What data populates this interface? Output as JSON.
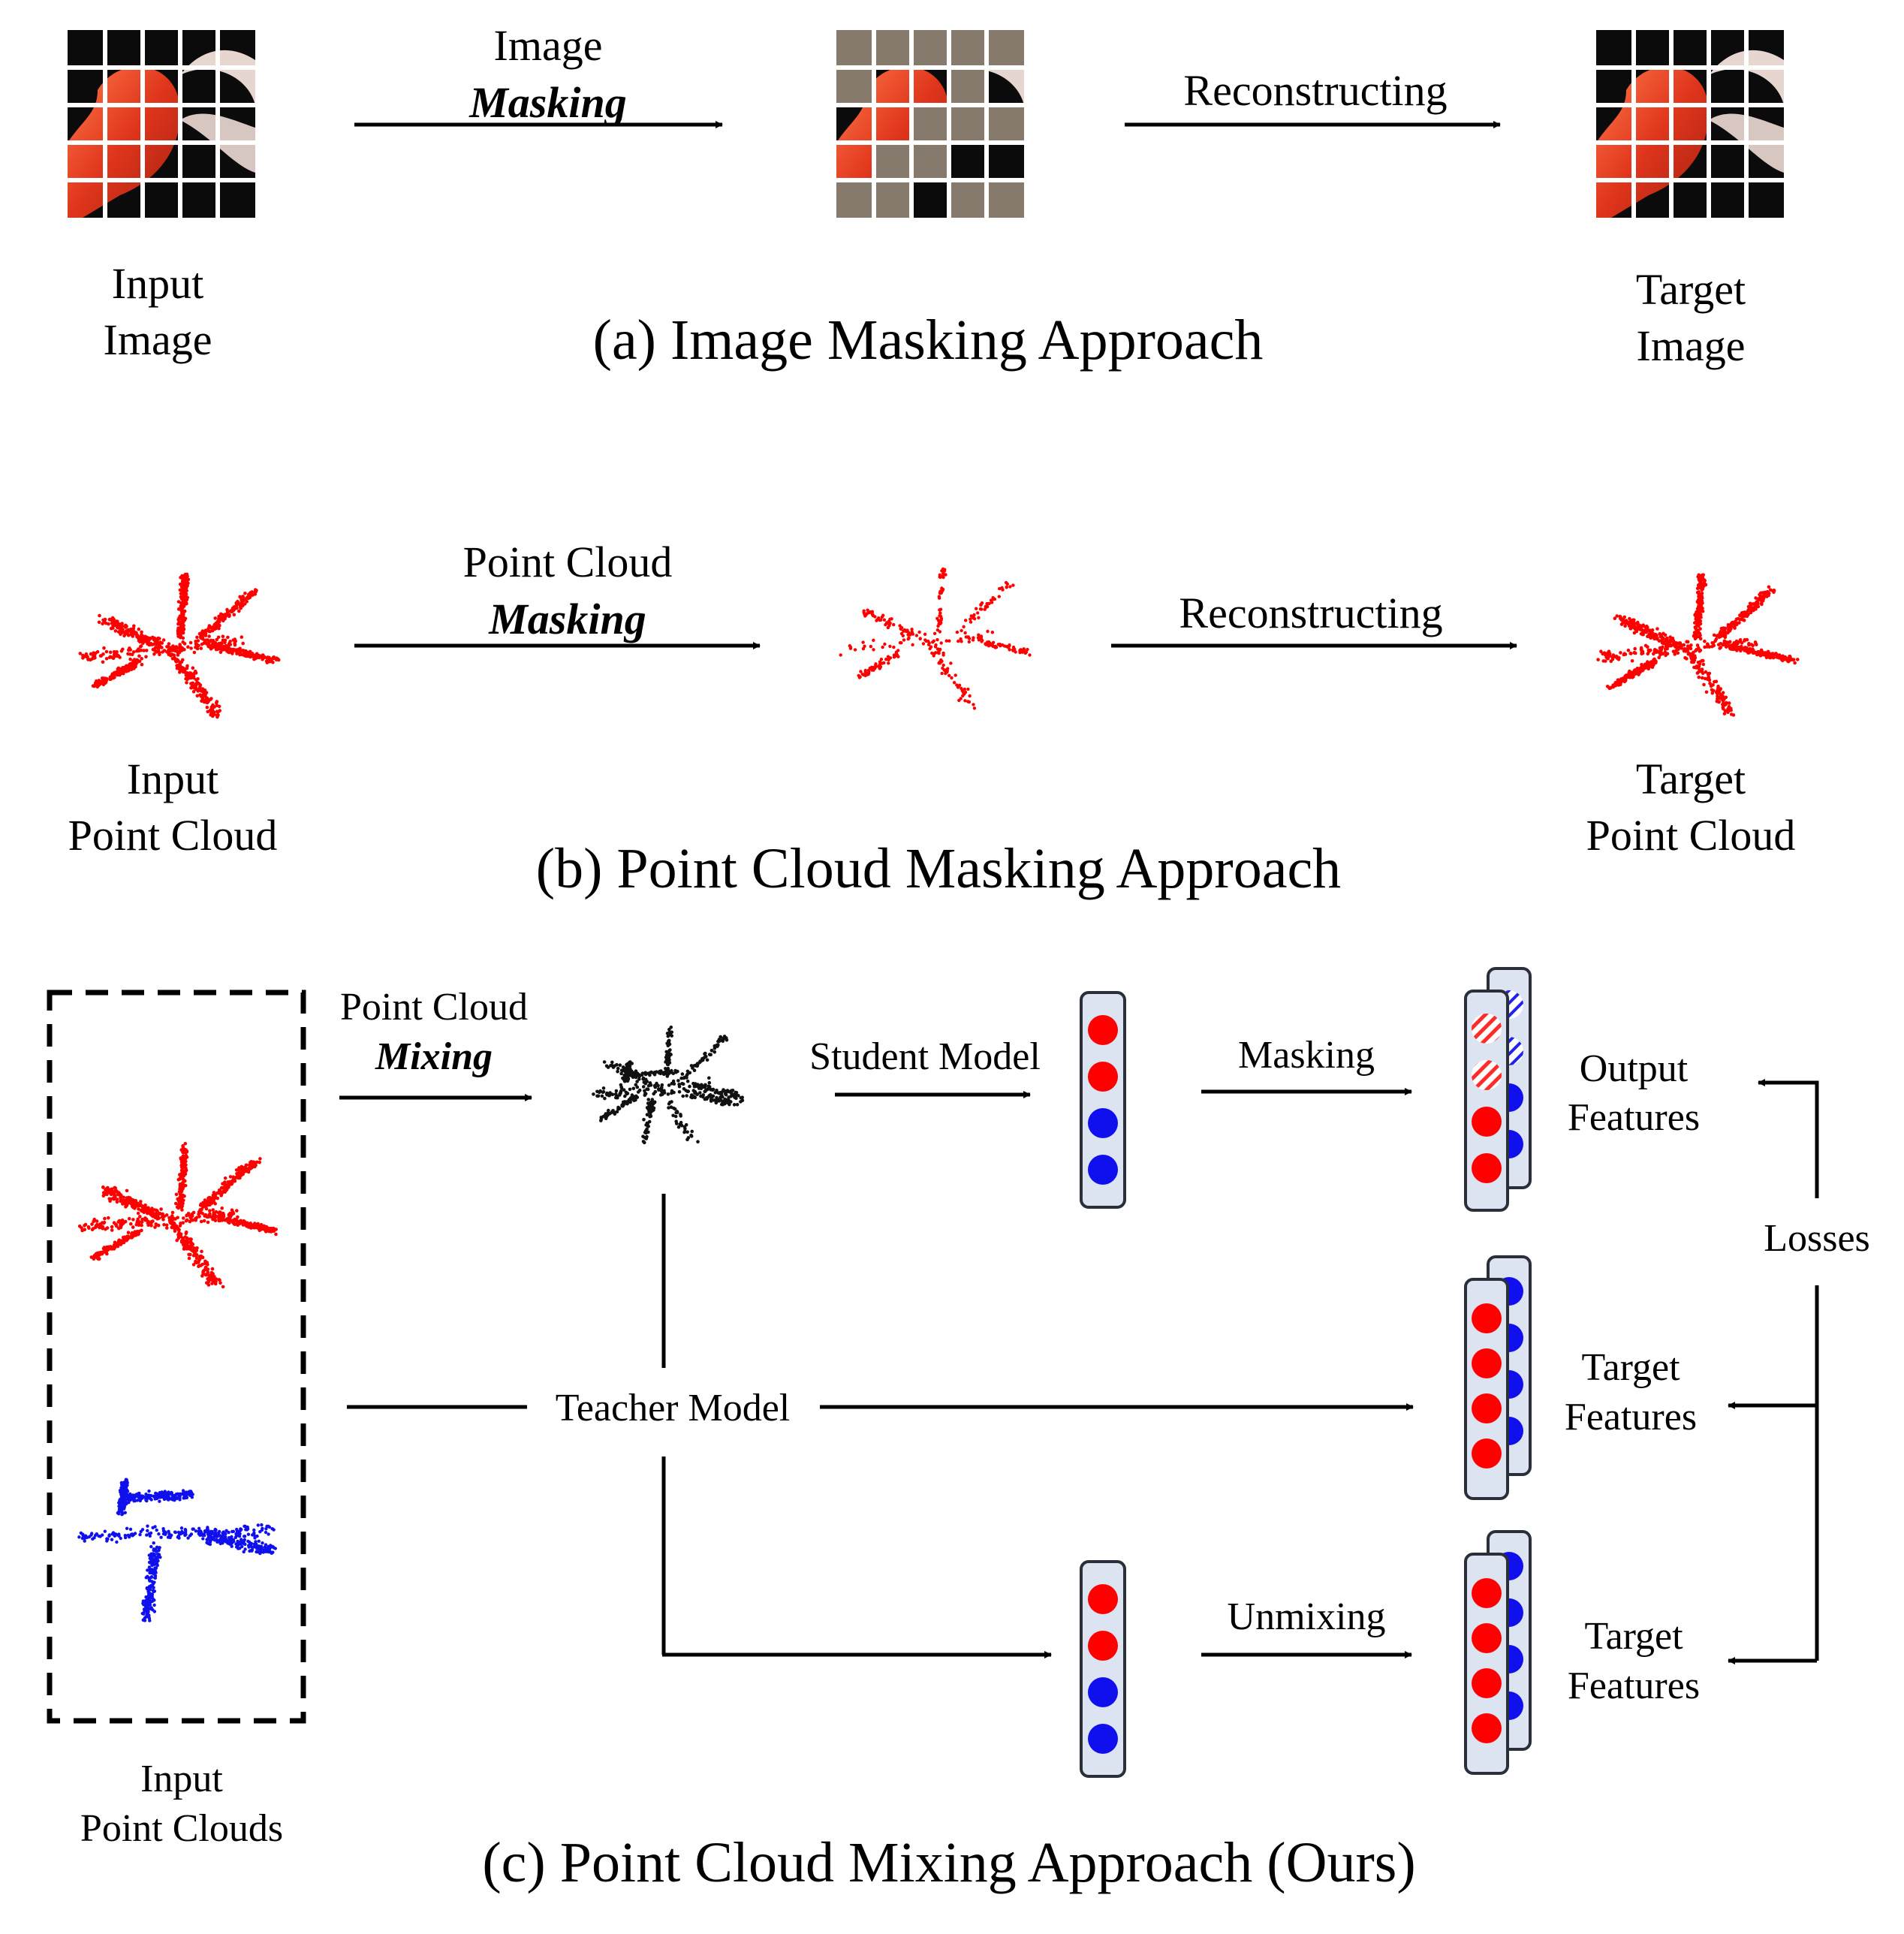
{
  "panel_a": {
    "caption": "(a) Image Masking Approach",
    "arrow1": {
      "line1": "Image",
      "line2": "Masking"
    },
    "arrow2": {
      "label": "Reconstructing"
    },
    "input_label": {
      "line1": "Input",
      "line2": "Image"
    },
    "target_label": {
      "line1": "Target",
      "line2": "Image"
    }
  },
  "panel_b": {
    "caption": "(b) Point Cloud Masking Approach",
    "arrow1": {
      "line1": "Point Cloud",
      "line2": "Masking"
    },
    "arrow2": {
      "label": "Reconstructing"
    },
    "input_label": {
      "line1": "Input",
      "line2": "Point Cloud"
    },
    "target_label": {
      "line1": "Target",
      "line2": "Point Cloud"
    }
  },
  "panel_c": {
    "caption": "(c) Point Cloud Mixing Approach (Ours)",
    "mixing": {
      "line1": "Point Cloud",
      "line2": "Mixing"
    },
    "student": "Student Model",
    "teacher": "Teacher Model",
    "masking": "Masking",
    "unmixing": "Unmixing",
    "output_features": {
      "line1": "Output",
      "line2": "Features"
    },
    "target_features_1": {
      "line1": "Target",
      "line2": "Features"
    },
    "target_features_2": {
      "line1": "Target",
      "line2": "Features"
    },
    "losses": "Losses",
    "inputs_label": {
      "line1": "Input",
      "line2": "Point Clouds"
    }
  },
  "colors": {
    "red": "#ff0000",
    "blue": "#1010ee",
    "card_fill": "#dce4f2",
    "card_stroke": "#2b2f3a",
    "mask_gray": "#857a6c",
    "flamingo": "#e8452a"
  }
}
